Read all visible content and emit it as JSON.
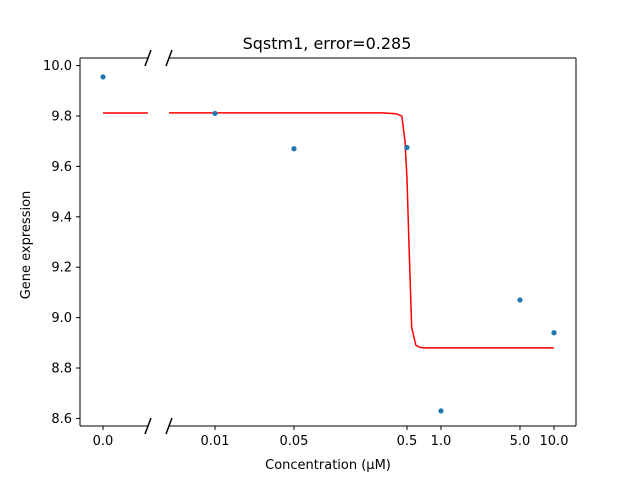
{
  "chart_data": {
    "type": "scatter",
    "title": "Sqstm1, error=0.285",
    "xlabel": "Concentration (μM)",
    "ylabel": "Gene expression",
    "ylim": [
      8.57,
      10.03
    ],
    "y_ticks": [
      8.6,
      8.8,
      9.0,
      9.2,
      9.4,
      9.6,
      9.8,
      10.0
    ],
    "y_tick_labels": [
      "8.6",
      "8.8",
      "9.0",
      "9.2",
      "9.4",
      "9.6",
      "9.8",
      "10.0"
    ],
    "x_scale": "log with broken axis at 0",
    "x_tick_values": [
      0,
      0.01,
      0.05,
      0.5,
      1.0,
      5.0,
      10.0
    ],
    "x_tick_labels": [
      "0.0",
      "0.01",
      "0.05",
      "0.5",
      "1.0",
      "5.0",
      "10.0"
    ],
    "grid": false,
    "series": [
      {
        "kind": "points",
        "color": "#1f77b4",
        "x": [
          0,
          0.01,
          0.05,
          0.5,
          1.0,
          5.0,
          10.0
        ],
        "y": [
          9.955,
          9.81,
          9.67,
          9.675,
          8.63,
          9.07,
          8.94
        ]
      },
      {
        "kind": "fit-curve",
        "color": "#ff0000",
        "x_zero_level": 9.812,
        "x": [
          0.0025,
          0.01,
          0.05,
          0.1,
          0.3,
          0.4,
          0.45,
          0.48,
          0.5,
          0.52,
          0.55,
          0.6,
          0.65,
          0.7,
          1.0,
          5.0,
          10.0
        ],
        "y": [
          9.812,
          9.812,
          9.812,
          9.812,
          9.812,
          9.809,
          9.8,
          9.7,
          9.55,
          9.3,
          8.96,
          8.89,
          8.882,
          8.88,
          8.88,
          8.88,
          8.88
        ]
      }
    ]
  }
}
